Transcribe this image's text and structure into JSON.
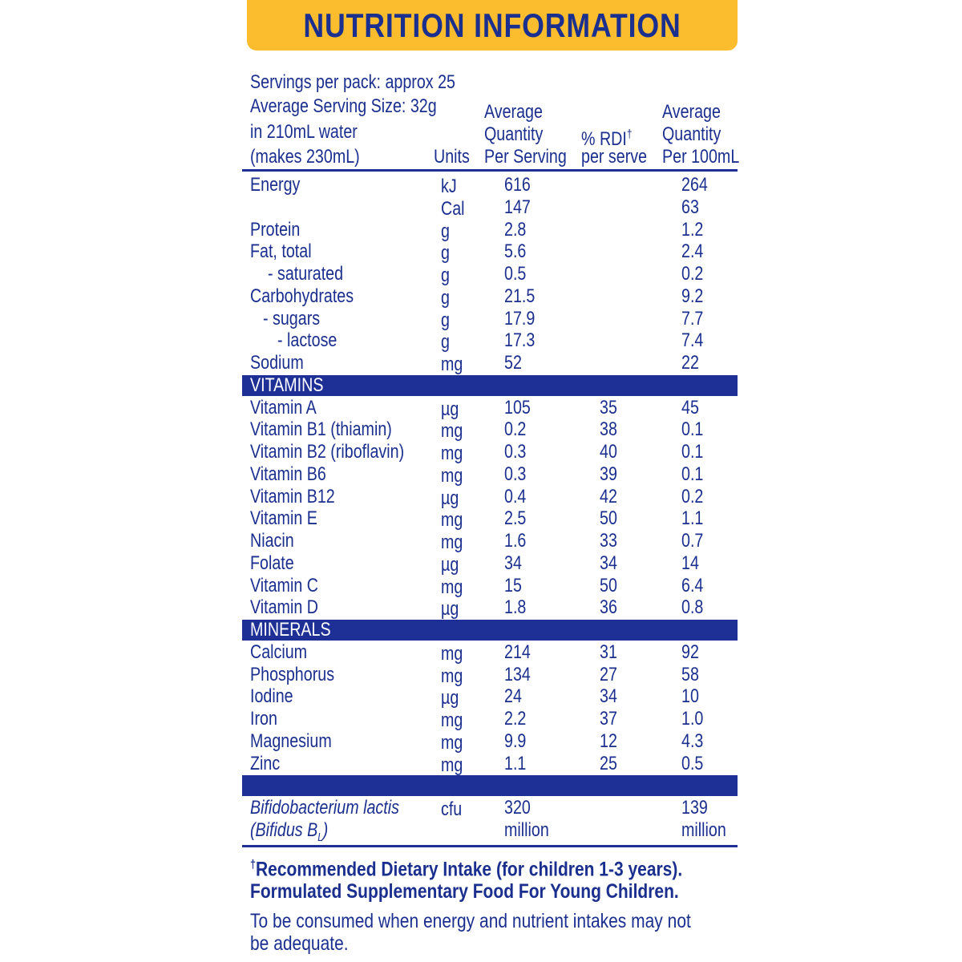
{
  "header": {
    "title": "NUTRITION INFORMATION"
  },
  "serving_info": [
    "Servings per pack: approx 25",
    "Average Serving Size: 32g",
    "in 210mL water",
    "(makes 230mL)"
  ],
  "columns": [
    [
      "Units"
    ],
    [
      "Average",
      "Quantity",
      "Per Serving"
    ],
    [
      {
        "text": "% RDI",
        "sup": "†"
      },
      "per serve"
    ],
    [
      "Average",
      "Quantity",
      "Per 100mL"
    ]
  ],
  "sections": [
    {
      "heading": null,
      "rows": [
        [
          "Energy",
          "kJ",
          "616",
          null,
          "264"
        ],
        [
          null,
          "Cal",
          "147",
          null,
          "63"
        ],
        [
          "Protein",
          "g",
          "2.8",
          null,
          "1.2"
        ],
        [
          "Fat, total",
          "g",
          "5.6",
          null,
          "2.4"
        ],
        [
          "- saturated",
          "g",
          "0.5",
          null,
          "0.2"
        ],
        [
          "Carbohydrates",
          "g",
          "21.5",
          null,
          "9.2"
        ],
        [
          "- sugars",
          "g",
          "17.9",
          null,
          "7.7"
        ],
        [
          "- lactose",
          "g",
          "17.3",
          null,
          "7.4"
        ],
        [
          "Sodium",
          "mg",
          "52",
          null,
          "22"
        ]
      ]
    },
    {
      "heading": "VITAMINS",
      "rows": [
        [
          "Vitamin A",
          "µg",
          "105",
          "35",
          "45"
        ],
        [
          "Vitamin B1 (thiamin)",
          "mg",
          "0.2",
          "38",
          "0.1"
        ],
        [
          "Vitamin B2 (riboflavin)",
          "mg",
          "0.3",
          "40",
          "0.1"
        ],
        [
          "Vitamin B6",
          "mg",
          "0.3",
          "39",
          "0.1"
        ],
        [
          "Vitamin B12",
          "µg",
          "0.4",
          "42",
          "0.2"
        ],
        [
          "Vitamin E",
          "mg",
          "2.5",
          "50",
          "1.1"
        ],
        [
          "Niacin",
          "mg",
          "1.6",
          "33",
          "0.7"
        ],
        [
          "Folate",
          "µg",
          "34",
          "34",
          "14"
        ],
        [
          "Vitamin C",
          "mg",
          "15",
          "50",
          "6.4"
        ],
        [
          "Vitamin D",
          "µg",
          "1.8",
          "36",
          "0.8"
        ]
      ]
    },
    {
      "heading": "MINERALS",
      "rows": [
        [
          "Calcium",
          "mg",
          "214",
          "31",
          "92"
        ],
        [
          "Phosphorus",
          "mg",
          "134",
          "27",
          "58"
        ],
        [
          "Iodine",
          "µg",
          "24",
          "34",
          "10"
        ],
        [
          "Iron",
          "mg",
          "2.2",
          "37",
          "1.0"
        ],
        [
          "Magnesium",
          "mg",
          "9.9",
          "12",
          "4.3"
        ],
        [
          "Zinc",
          "mg",
          "1.1",
          "25",
          "0.5"
        ]
      ]
    },
    {
      "heading": null,
      "rows": [
        [
          "Bifidobacterium lactis",
          "cfu",
          "320",
          null,
          "139"
        ],
        [
          {
            "text": "(Bifidus B",
            "sub": "L",
            "after": ")"
          },
          null,
          "million",
          null,
          "million"
        ]
      ]
    }
  ],
  "footnotes": [
    {
      "sup": "†",
      "text": "Recommended Dietary Intake (for children 1-3 years)."
    },
    {
      "text": "Formulated Supplementary Food For Young Children."
    },
    {
      "text": "To be consumed when energy and nutrient intakes may not be adequate."
    }
  ]
}
